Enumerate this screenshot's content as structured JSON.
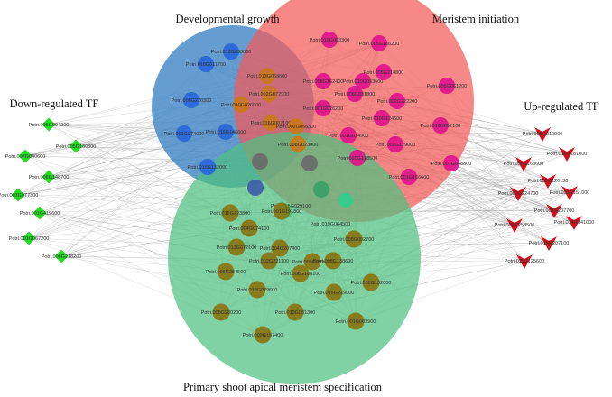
{
  "colors": {
    "dev_growth": "#3b82c4",
    "meristem_init": "#f25a5a",
    "primary_shoot": "#4fbf7f",
    "node_blue": "#2a66d9",
    "node_pink": "#e0148c",
    "node_olive": "#8a7410",
    "node_green": "#22dd22",
    "node_red": "#d40f1c",
    "edge": "#9a9a9a"
  },
  "titles": {
    "developmental_growth": "Developmental growth",
    "meristem_initiation": "Meristem initiation",
    "down_regulated": "Down-regulated TF",
    "up_regulated": "Up-regulated TF",
    "primary_shoot": "Primary shoot apical meristem specification"
  },
  "down_tf": [
    "Potri.006G094200",
    "Potri.005G180800",
    "Potri.007G040600",
    "Potri.009G148700",
    "Potri.003G077300",
    "Potri.001G419600",
    "Potri.001G067200",
    "Potri.006G218200"
  ],
  "up_tf": [
    "Potri.005G210900",
    "Potri.010G181000",
    "Potri.006G163600",
    "Potri.002G120130",
    "Potri.001G151000",
    "Potri.002G224700",
    "Potri.002G207700",
    "Potri.014G141000",
    "Potri.005G258500",
    "Potri.015G207100",
    "Potri.011G125600"
  ],
  "dev_nodes": [
    "Potri.018G038600",
    "Potri.018G011700",
    "Potri.006G220300",
    "Potri.001G274600",
    "Potri.016G146600",
    "Potri.016G132000"
  ],
  "dev_meri_nodes": [
    "Potri.013G068600",
    "Potri.002G077900",
    "Potri.010G026900",
    "Potri.016G007100",
    "Potri.002G056300",
    "Potri.008G023000"
  ],
  "meri_nodes": [
    "Potri.005G186200",
    "Potri.010G083300",
    "Potri.010G063600",
    "Potri.008G162400",
    "Potri.005G214800",
    "Potri.005G061200",
    "Potri.006G081800",
    "Potri.002G222200",
    "Potri.001G026200",
    "Potri.010G124600",
    "Potri.019G052100",
    "Potri.001G014900",
    "Potri.002G129000",
    "Potri.010G178500",
    "Potri.001G048800",
    "Potri.001G166600"
  ],
  "center_labels": [
    "Potri.015G029100",
    "Potri.019G064500"
  ],
  "primary_nodes": [
    "Potri.015G223800",
    "Potri.001G191800",
    "Potri.004G074100",
    "Potri.013G072100",
    "Potri.004G207400",
    "Potri.008G002700",
    "Potri.002G221100",
    "Potri.009G099600",
    "Potri.005G254500",
    "Potri.008G138600",
    "Potri.008G180100",
    "Potri.009G132000",
    "Potri.010G079600",
    "Potri.015G219000",
    "Potri.008G280200",
    "Potri.013G081300",
    "Potri.001G003900",
    "Potri.009G187400"
  ]
}
